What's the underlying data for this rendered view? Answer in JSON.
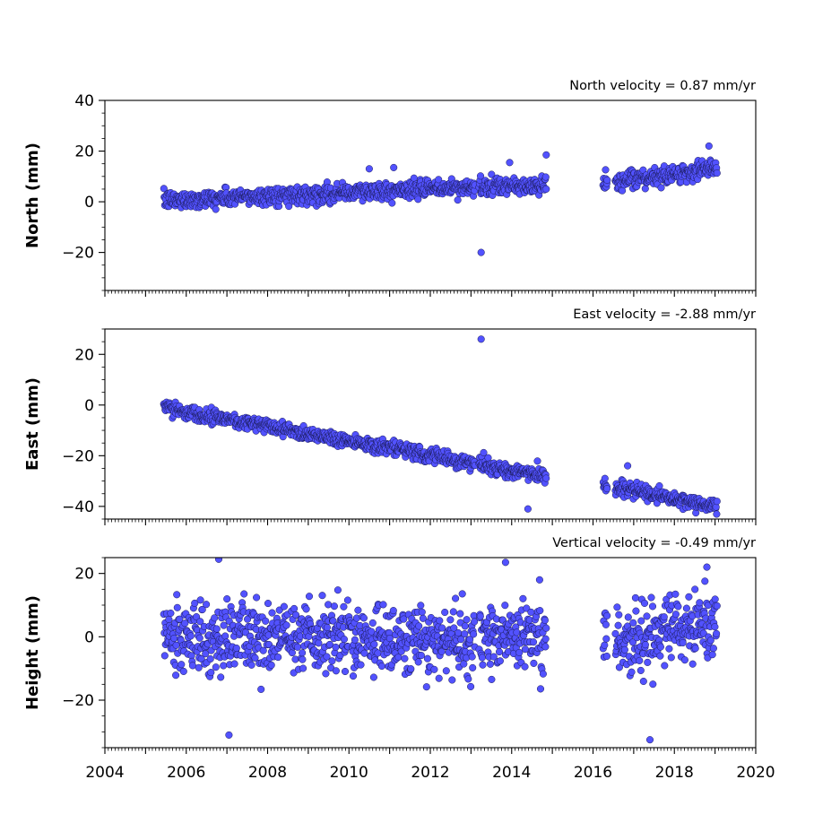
{
  "chart_data": [
    {
      "type": "scatter",
      "title": "North velocity = 0.87 mm/yr",
      "xlabel": "",
      "ylabel": "North (mm)",
      "xlim": [
        2004,
        2020
      ],
      "ylim": [
        -35,
        40
      ],
      "y_ticks": [
        40,
        20,
        0,
        -20
      ],
      "y_tick_labels": [
        "40",
        "20",
        "0",
        "−20"
      ],
      "show_x_tick_labels": false,
      "series": [
        {
          "segments": [
            {
              "x0": 2005.45,
              "x1": 2013.1,
              "y0": 0.5,
              "y1": 5.8
            },
            {
              "x0": 2013.2,
              "x1": 2014.85,
              "y0": 5.5,
              "y1": 6.5
            },
            {
              "x0": 2016.25,
              "x1": 2016.35,
              "y0": 7.5,
              "y1": 7.8
            },
            {
              "x0": 2016.55,
              "x1": 2019.05,
              "y0": 7.5,
              "y1": 13.5
            }
          ],
          "scatter_sd": 1.7,
          "outliers": [
            [
              2013.25,
              -20
            ],
            [
              2014.85,
              18.5
            ],
            [
              2018.85,
              22
            ],
            [
              2010.5,
              13
            ],
            [
              2011.1,
              13.5
            ],
            [
              2013.95,
              15.5
            ]
          ]
        }
      ]
    },
    {
      "type": "scatter",
      "title": "East velocity = -2.88 mm/yr",
      "xlabel": "",
      "ylabel": "East (mm)",
      "xlim": [
        2004,
        2020
      ],
      "ylim": [
        -45,
        30
      ],
      "y_ticks": [
        20,
        0,
        -20,
        -40
      ],
      "y_tick_labels": [
        "20",
        "0",
        "−20",
        "−40"
      ],
      "show_x_tick_labels": false,
      "series": [
        {
          "segments": [
            {
              "x0": 2005.45,
              "x1": 2013.1,
              "y0": -1.0,
              "y1": -23.0
            },
            {
              "x0": 2013.2,
              "x1": 2014.85,
              "y0": -24.0,
              "y1": -28.0
            },
            {
              "x0": 2016.25,
              "x1": 2016.35,
              "y0": -31.0,
              "y1": -31.5
            },
            {
              "x0": 2016.55,
              "x1": 2019.05,
              "y0": -32.5,
              "y1": -40.5
            }
          ],
          "scatter_sd": 1.4,
          "outliers": [
            [
              2013.25,
              26
            ],
            [
              2014.4,
              -41
            ],
            [
              2016.85,
              -24
            ]
          ]
        }
      ]
    },
    {
      "type": "scatter",
      "title": "Vertical velocity = -0.49 mm/yr",
      "xlabel": "",
      "ylabel": "Height (mm)",
      "xlim": [
        2004,
        2020
      ],
      "ylim": [
        -35,
        25
      ],
      "y_ticks": [
        20,
        0,
        -20
      ],
      "y_tick_labels": [
        "20",
        "0",
        "−20"
      ],
      "show_x_tick_labels": true,
      "x_ticks": [
        2004,
        2006,
        2008,
        2010,
        2012,
        2014,
        2016,
        2018,
        2020
      ],
      "x_tick_labels": [
        "2004",
        "2006",
        "2008",
        "2010",
        "2012",
        "2014",
        "2016",
        "2018",
        "2020"
      ],
      "series": [
        {
          "segments": [
            {
              "x0": 2005.45,
              "x1": 2013.1,
              "y0": 0.0,
              "y1": -1.0
            },
            {
              "x0": 2013.2,
              "x1": 2014.85,
              "y0": 1.0,
              "y1": 0.0
            },
            {
              "x0": 2016.25,
              "x1": 2016.35,
              "y0": 0.0,
              "y1": 0.0
            },
            {
              "x0": 2016.55,
              "x1": 2019.05,
              "y0": -2.0,
              "y1": 5.0
            }
          ],
          "scatter_sd": 5.5,
          "outliers": [
            [
              2006.8,
              24.5
            ],
            [
              2007.05,
              -31
            ],
            [
              2017.4,
              -32.5
            ],
            [
              2013.85,
              23.5
            ],
            [
              2018.8,
              22
            ]
          ]
        }
      ]
    }
  ],
  "colors": {
    "marker_fill": "#5252ff",
    "marker_edge": "#1a1a55",
    "axis": "#000000"
  }
}
